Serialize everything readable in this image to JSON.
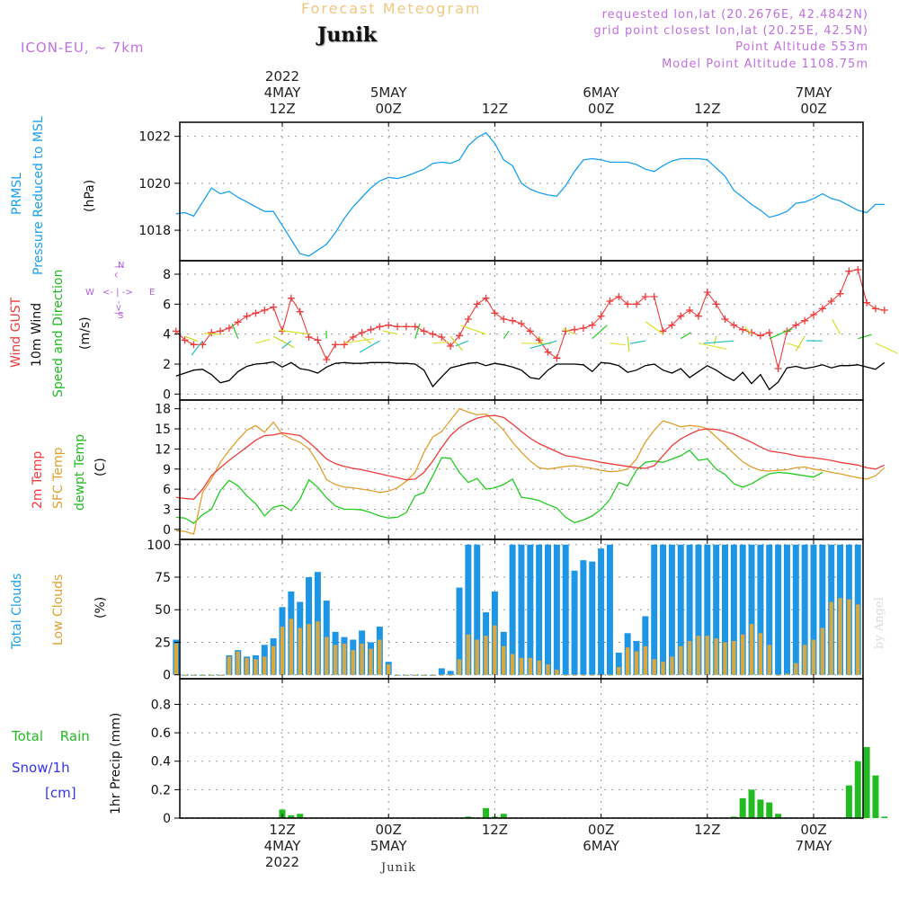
{
  "header": {
    "product_title": "Forecast Meteogram",
    "station": "Junik",
    "model": "ICON-EU, ~ 7km",
    "requested": "requested lon,lat (20.2676E, 42.4842N)",
    "gridpoint": "grid point closest lon,lat (20.25E, 42.5N)",
    "point_altitude": "Point Altitude 553m",
    "model_altitude": "Model Point Altitude 1108.75m",
    "footer_station": "Junik",
    "watermark": "by Angel"
  },
  "colors": {
    "pressure": "#1aa0f0",
    "gust": "#f03c3c",
    "wind10m": "#000000",
    "temp2m": "#f03c3c",
    "sfc": "#e0a030",
    "dewpt": "#22cc22",
    "total_cloud": "#1e96e6",
    "low_cloud": "#d8a840",
    "rain": "#22bb22",
    "snow": "#3333ee",
    "compass": "#b060e0",
    "model": "#c070e0",
    "title": "#f0c880"
  },
  "top_axis": [
    {
      "line1": "2022",
      "line2": "4MAY",
      "line3": "12Z"
    },
    {
      "line1": "",
      "line2": "5MAY",
      "line3": "00Z"
    },
    {
      "line1": "",
      "line2": "",
      "line3": "12Z"
    },
    {
      "line1": "",
      "line2": "6MAY",
      "line3": "00Z"
    },
    {
      "line1": "",
      "line2": "",
      "line3": "12Z"
    },
    {
      "line1": "",
      "line2": "7MAY",
      "line3": "00Z"
    }
  ],
  "bottom_axis": [
    {
      "line1": "12Z",
      "line2": "4MAY",
      "line3": "2022"
    },
    {
      "line1": "00Z",
      "line2": "5MAY",
      "line3": ""
    },
    {
      "line1": "12Z",
      "line2": "",
      "line3": ""
    },
    {
      "line1": "00Z",
      "line2": "6MAY",
      "line3": ""
    },
    {
      "line1": "12Z",
      "line2": "",
      "line3": ""
    },
    {
      "line1": "00Z",
      "line2": "7MAY",
      "line3": ""
    }
  ],
  "compass": {
    "n": "N",
    "s": "S",
    "w": "W",
    "e": "E",
    "n_arrow": "^ | ",
    "s_arrow": "|<-",
    "h_arrow": "<- | ->"
  },
  "panel_labels": {
    "pressure": {
      "line1": "PRMSL",
      "line2": "Pressure Reduced to MSL",
      "unit": "(hPa)"
    },
    "wind": {
      "line1": "Wind GUST",
      "line2": "10m Wind",
      "line3": "Speed and Direction",
      "unit": "(m/s)"
    },
    "temp": {
      "line1": "2m Temp",
      "line2": "SFC Temp",
      "line3": "dewpt Temp",
      "unit": "(C)"
    },
    "cloud": {
      "line1": "Total Clouds",
      "line2": "Low Clouds",
      "unit": "(%)"
    },
    "precip": {
      "line1": "Total Rain",
      "line2": "Snow/1h",
      "line3": "[cm]",
      "unit": "1hr Precip (mm)"
    }
  },
  "chart_data": [
    {
      "type": "line",
      "name": "pressure",
      "title": "PRMSL Pressure Reduced to MSL",
      "ylabel": "(hPa)",
      "ylim": [
        1016.7,
        1022.6
      ],
      "yticks": [
        1018,
        1020,
        1022
      ],
      "x_start_hour": 0,
      "x_step_hours": 1,
      "series": [
        {
          "name": "PRMSL",
          "values": [
            1018.7,
            1018.75,
            1018.6,
            1019.2,
            1019.8,
            1019.55,
            1019.65,
            1019.4,
            1019.2,
            1019.0,
            1018.8,
            1018.8,
            1018.2,
            1017.6,
            1017.0,
            1016.9,
            1017.15,
            1017.4,
            1017.9,
            1018.5,
            1019.0,
            1019.4,
            1019.8,
            1020.1,
            1020.25,
            1020.2,
            1020.3,
            1020.45,
            1020.6,
            1020.85,
            1020.9,
            1020.85,
            1021.0,
            1021.6,
            1021.95,
            1022.15,
            1021.7,
            1021.0,
            1020.75,
            1020.0,
            1019.75,
            1019.6,
            1019.5,
            1019.45,
            1019.9,
            1020.5,
            1021.0,
            1021.05,
            1021.0,
            1020.9,
            1020.9,
            1020.9,
            1020.8,
            1020.6,
            1020.5,
            1020.75,
            1020.95,
            1021.05,
            1021.05,
            1021.05,
            1021.0,
            1020.65,
            1020.3,
            1019.7,
            1019.4,
            1019.1,
            1018.85,
            1018.55,
            1018.65,
            1018.8,
            1019.15,
            1019.2,
            1019.35,
            1019.55,
            1019.35,
            1019.25,
            1019.05,
            1018.85,
            1018.75,
            1019.1,
            1019.1
          ]
        }
      ]
    },
    {
      "type": "line",
      "name": "wind",
      "title": "Wind GUST / 10m Wind Speed and Direction",
      "ylabel": "(m/s)",
      "ylim": [
        -0.4,
        8.9
      ],
      "yticks": [
        0,
        2,
        4,
        6,
        8
      ],
      "x_start_hour": 0,
      "x_step_hours": 1,
      "series": [
        {
          "name": "Wind GUST",
          "values": [
            4.2,
            3.6,
            3.3,
            3.3,
            4.1,
            4.2,
            4.4,
            4.8,
            5.2,
            5.4,
            5.6,
            5.8,
            4.2,
            6.4,
            5.5,
            3.8,
            3.6,
            2.3,
            3.3,
            3.3,
            3.8,
            4.1,
            4.3,
            4.5,
            4.6,
            4.5,
            4.5,
            4.5,
            4.2,
            4.0,
            3.8,
            3.2,
            3.9,
            5.0,
            6.0,
            6.4,
            5.4,
            5.0,
            4.9,
            4.7,
            4.2,
            3.6,
            2.8,
            2.4,
            4.2,
            4.3,
            4.4,
            4.6,
            5.2,
            6.2,
            6.5,
            6.0,
            6.0,
            6.5,
            6.5,
            4.2,
            4.6,
            5.2,
            5.6,
            5.2,
            6.8,
            6.0,
            5.0,
            4.6,
            4.3,
            4.1,
            3.9,
            4.1,
            1.7,
            4.2,
            4.6,
            4.9,
            5.3,
            5.7,
            6.2,
            6.7,
            8.2,
            8.3,
            6.1,
            5.7,
            5.6
          ]
        },
        {
          "name": "10m Wind",
          "values": [
            1.2,
            1.4,
            1.6,
            1.65,
            1.3,
            0.75,
            0.9,
            1.5,
            1.85,
            2.0,
            2.05,
            2.15,
            1.8,
            2.1,
            1.7,
            1.6,
            1.4,
            1.8,
            2.05,
            2.1,
            2.05,
            2.05,
            2.1,
            2.1,
            2.1,
            2.05,
            2.05,
            2.0,
            1.6,
            0.5,
            1.15,
            1.75,
            1.9,
            2.05,
            2.1,
            1.9,
            2.05,
            1.95,
            1.8,
            1.6,
            1.1,
            1.0,
            1.6,
            2.0,
            2.0,
            2.0,
            1.95,
            1.5,
            2.1,
            2.05,
            1.9,
            1.45,
            1.6,
            1.9,
            2.0,
            1.6,
            1.4,
            1.7,
            1.1,
            1.5,
            1.9,
            1.6,
            1.2,
            0.9,
            1.45,
            0.7,
            1.3,
            0.3,
            0.8,
            1.75,
            1.85,
            1.7,
            1.8,
            1.95,
            1.75,
            1.9,
            1.9,
            1.95,
            1.8,
            1.65,
            2.1
          ]
        }
      ]
    },
    {
      "type": "line",
      "name": "temperature",
      "title": "2m Temp / SFC Temp / dewpt Temp",
      "ylabel": "(C)",
      "ylim": [
        -1.5,
        19.3
      ],
      "yticks": [
        0,
        3,
        6,
        9,
        12,
        15,
        18
      ],
      "x_start_hour": 0,
      "x_step_hours": 1,
      "series": [
        {
          "name": "2m Temp",
          "values": [
            4.8,
            4.6,
            4.5,
            6.0,
            8.0,
            9.2,
            10.3,
            11.3,
            12.3,
            13.3,
            14.0,
            14.1,
            14.4,
            14.2,
            14.0,
            13.0,
            11.8,
            10.5,
            9.8,
            9.4,
            9.1,
            8.9,
            8.6,
            8.3,
            8.0,
            7.7,
            7.4,
            7.5,
            8.5,
            10.2,
            12.2,
            14.0,
            15.2,
            16.0,
            16.6,
            16.9,
            17.0,
            16.7,
            15.7,
            14.6,
            13.6,
            12.8,
            12.2,
            11.6,
            11.0,
            10.8,
            10.5,
            10.3,
            10.0,
            9.8,
            9.6,
            9.4,
            9.2,
            9.1,
            9.5,
            11.0,
            12.5,
            13.5,
            14.2,
            14.8,
            15.0,
            14.9,
            14.6,
            14.2,
            13.6,
            13.0,
            12.3,
            11.7,
            11.5,
            11.3,
            11.0,
            10.8,
            10.7,
            10.5,
            10.3,
            10.0,
            9.8,
            9.6,
            9.2,
            9.0,
            9.6
          ]
        },
        {
          "name": "SFC Temp",
          "values": [
            -0.2,
            -0.3,
            -0.7,
            5.5,
            7.5,
            10.0,
            11.8,
            13.4,
            14.8,
            15.5,
            14.5,
            16.0,
            14.2,
            13.5,
            13.0,
            12.0,
            10.0,
            7.4,
            6.7,
            6.3,
            6.2,
            6.0,
            5.8,
            5.5,
            5.7,
            6.2,
            7.2,
            8.5,
            11.5,
            13.8,
            14.6,
            16.3,
            18.0,
            17.5,
            17.1,
            17.2,
            16.1,
            14.8,
            13.0,
            11.5,
            10.2,
            9.2,
            9.0,
            9.2,
            9.4,
            9.5,
            9.3,
            9.1,
            8.8,
            8.6,
            8.7,
            9.0,
            10.5,
            13.0,
            14.8,
            16.2,
            15.8,
            15.3,
            15.5,
            15.4,
            15.0,
            13.8,
            12.6,
            11.3,
            10.1,
            9.3,
            8.8,
            8.7,
            8.8,
            8.9,
            9.2,
            9.3,
            9.0,
            8.8,
            8.5,
            8.3,
            8.0,
            7.7,
            7.5,
            8.0,
            9.2
          ]
        },
        {
          "name": "dewpt Temp",
          "values": [
            1.8,
            1.7,
            0.9,
            2.2,
            3.0,
            5.8,
            7.3,
            6.5,
            5.0,
            3.8,
            2.0,
            3.3,
            3.6,
            2.8,
            4.5,
            7.4,
            6.3,
            4.7,
            3.5,
            3.0,
            3.0,
            2.9,
            2.5,
            2.0,
            1.7,
            1.8,
            2.5,
            5.0,
            5.5,
            8.0,
            10.7,
            10.6,
            8.5,
            7.0,
            7.6,
            6.0,
            6.2,
            6.7,
            7.5,
            4.8,
            4.6,
            4.3,
            3.7,
            3.2,
            1.8,
            1.0,
            1.4,
            2.0,
            3.0,
            4.5,
            7.0,
            6.5,
            8.8,
            10.0,
            10.2,
            10.0,
            10.5,
            11.0,
            11.8,
            10.3,
            10.5,
            9.0,
            8.2,
            6.8,
            6.3,
            6.8,
            7.6,
            8.3,
            8.5,
            8.4,
            8.2,
            8.0,
            7.8,
            8.5
          ]
        }
      ]
    },
    {
      "type": "bar",
      "name": "clouds",
      "title": "Total Clouds / Low Clouds",
      "ylabel": "(%)",
      "ylim": [
        -3,
        104
      ],
      "yticks": [
        0,
        25,
        50,
        75,
        100
      ],
      "x_start_hour": 0,
      "x_step_hours": 1,
      "series": [
        {
          "name": "Total Clouds",
          "values": [
            27,
            0,
            0,
            0,
            0,
            0,
            15,
            19,
            14,
            15,
            23,
            28,
            52,
            64,
            56,
            75,
            79,
            57,
            33,
            29,
            27,
            34,
            25,
            37,
            10,
            0,
            0,
            0,
            0,
            0,
            5,
            3,
            67,
            100,
            100,
            48,
            64,
            33,
            100,
            100,
            100,
            100,
            100,
            100,
            100,
            80,
            88,
            87,
            97,
            100,
            17,
            32,
            26,
            45,
            100,
            100,
            100,
            100,
            100,
            100,
            100,
            100,
            100,
            100,
            100,
            100,
            100,
            100,
            100,
            100,
            100,
            100,
            100,
            100,
            100,
            100,
            100,
            100,
            100,
            100,
            100,
            100,
            100,
            100,
            100,
            97
          ]
        },
        {
          "name": "Low Clouds",
          "values": [
            24,
            0,
            0,
            0,
            0,
            0,
            14,
            18,
            13,
            12,
            14,
            22,
            37,
            43,
            36,
            39,
            41,
            29,
            23,
            24,
            19,
            24,
            20,
            27,
            8,
            0,
            0,
            0,
            0,
            0,
            0,
            0,
            12,
            31,
            27,
            30,
            38,
            22,
            16,
            13,
            13,
            11,
            8,
            4,
            0,
            0,
            0,
            0,
            0,
            0,
            6,
            21,
            18,
            22,
            12,
            10,
            14,
            22,
            26,
            30,
            30,
            28,
            25,
            26,
            31,
            39,
            32,
            23,
            0,
            1,
            9,
            23,
            27,
            36,
            56,
            59,
            58,
            54,
            50,
            45,
            48,
            52,
            59,
            53
          ]
        }
      ]
    },
    {
      "type": "bar",
      "name": "precipitation",
      "title": "Total Rain / Snow/1h [cm]",
      "ylabel": "1hr Precip (mm)",
      "ylim": [
        0,
        0.98
      ],
      "yticks": [
        0,
        0.2,
        0.4,
        0.6,
        0.8
      ],
      "x_start_hour": 0,
      "x_step_hours": 1,
      "series": [
        {
          "name": "Total Rain",
          "values": [
            0,
            0,
            0,
            0,
            0,
            0,
            0,
            0,
            0,
            0,
            0,
            0,
            0.06,
            0.02,
            0.03,
            0,
            0,
            0,
            0,
            0,
            0,
            0,
            0,
            0,
            0,
            0,
            0,
            0,
            0,
            0,
            0,
            0,
            0,
            0.01,
            0,
            0.07,
            0.01,
            0.03,
            0,
            0,
            0,
            0,
            0,
            0,
            0,
            0,
            0,
            0,
            0,
            0,
            0,
            0,
            0,
            0,
            0,
            0,
            0,
            0,
            0,
            0,
            0,
            0,
            0,
            0.01,
            0.14,
            0.2,
            0.13,
            0.11,
            0.03,
            0,
            0,
            0,
            0,
            0,
            0,
            0,
            0.23,
            0.4,
            0.5,
            0.3,
            0.01,
            0,
            0
          ]
        },
        {
          "name": "Snow/1h",
          "values": [
            0,
            0,
            0,
            0,
            0,
            0,
            0,
            0,
            0,
            0,
            0,
            0,
            0,
            0,
            0,
            0,
            0,
            0,
            0,
            0,
            0,
            0,
            0,
            0,
            0,
            0,
            0,
            0,
            0,
            0,
            0,
            0,
            0,
            0,
            0,
            0,
            0,
            0,
            0,
            0,
            0,
            0,
            0,
            0,
            0,
            0,
            0,
            0,
            0,
            0,
            0,
            0,
            0,
            0,
            0,
            0,
            0,
            0,
            0,
            0,
            0,
            0,
            0,
            0,
            0,
            0,
            0,
            0,
            0,
            0,
            0,
            0,
            0,
            0,
            0,
            0,
            0,
            0,
            0,
            0,
            0
          ]
        }
      ]
    }
  ]
}
